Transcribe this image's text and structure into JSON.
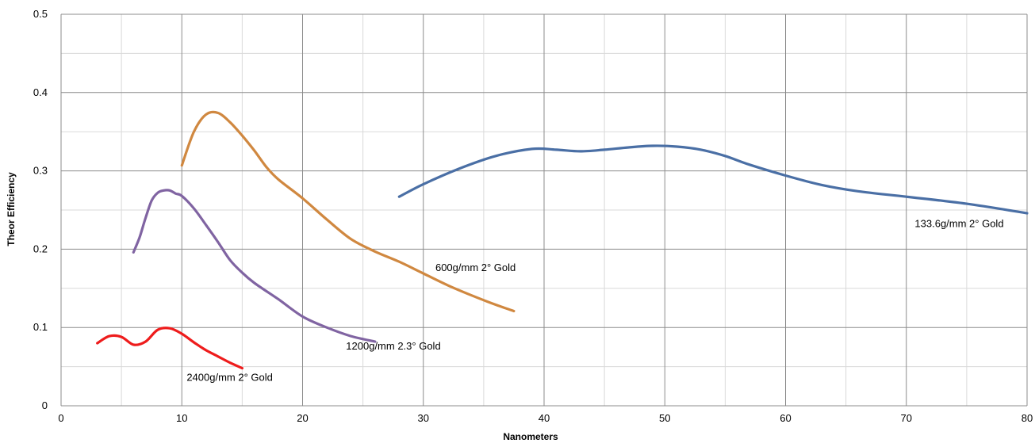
{
  "chart_data": {
    "type": "line",
    "title": "",
    "xlabel": "Nanometers",
    "ylabel": "Theor Efficiency",
    "xlim": [
      0,
      80
    ],
    "ylim": [
      0,
      0.5
    ],
    "x_ticks": [
      0,
      10,
      20,
      30,
      40,
      50,
      60,
      70,
      80
    ],
    "y_ticks": [
      0,
      0.1,
      0.2,
      0.3,
      0.4,
      0.5
    ],
    "x_tick_labels": [
      "0",
      "10",
      "20",
      "30",
      "40",
      "50",
      "60",
      "70",
      "80"
    ],
    "y_tick_labels": [
      "0",
      "0.1",
      "0.2",
      "0.3",
      "0.4",
      "0.5"
    ],
    "x_minor_step": 5,
    "y_minor_step": 0.05,
    "grid": true,
    "legend": "none",
    "series": [
      {
        "name": "133.6g/mm 2° Gold",
        "color": "#4a6fa5",
        "x": [
          28,
          30,
          33,
          36,
          39,
          41,
          43,
          45,
          47,
          49,
          51,
          53,
          55,
          57,
          60,
          63,
          66,
          70,
          75,
          80
        ],
        "y": [
          0.267,
          0.283,
          0.303,
          0.319,
          0.328,
          0.327,
          0.325,
          0.327,
          0.33,
          0.332,
          0.331,
          0.327,
          0.319,
          0.308,
          0.294,
          0.282,
          0.274,
          0.267,
          0.258,
          0.246
        ]
      },
      {
        "name": "600g/mm 2° Gold",
        "color": "#d08840",
        "x": [
          10,
          11,
          12,
          13,
          14,
          15,
          16,
          17,
          18,
          20,
          22,
          24,
          26,
          28,
          30,
          32,
          34,
          36,
          37.5
        ],
        "y": [
          0.307,
          0.35,
          0.372,
          0.374,
          0.362,
          0.345,
          0.326,
          0.305,
          0.289,
          0.265,
          0.238,
          0.213,
          0.197,
          0.184,
          0.169,
          0.154,
          0.141,
          0.129,
          0.121
        ]
      },
      {
        "name": "1200g/mm 2.3° Gold",
        "color": "#8064a2",
        "x": [
          6,
          6.5,
          7,
          7.5,
          8,
          8.5,
          9,
          9.5,
          10,
          11,
          12,
          13,
          14,
          15,
          16,
          18,
          20,
          22,
          24,
          26
        ],
        "y": [
          0.196,
          0.215,
          0.24,
          0.262,
          0.272,
          0.275,
          0.275,
          0.271,
          0.268,
          0.252,
          0.231,
          0.209,
          0.186,
          0.17,
          0.157,
          0.136,
          0.114,
          0.1,
          0.089,
          0.082
        ]
      },
      {
        "name": "2400g/mm 2° Gold",
        "color": "#ee1c1c",
        "x": [
          3,
          4,
          5,
          6,
          7,
          8,
          9,
          10,
          11,
          12,
          13,
          14,
          15
        ],
        "y": [
          0.08,
          0.089,
          0.088,
          0.078,
          0.082,
          0.097,
          0.099,
          0.092,
          0.081,
          0.071,
          0.063,
          0.055,
          0.048
        ]
      }
    ],
    "annotations": [
      {
        "text": "133.6g/mm 2° Gold",
        "x": 70.7,
        "y": 0.228
      },
      {
        "text": "600g/mm 2° Gold",
        "x": 31.0,
        "y": 0.172
      },
      {
        "text": "1200g/mm 2.3° Gold",
        "x": 23.6,
        "y": 0.072
      },
      {
        "text": "2400g/mm 2° Gold",
        "x": 10.4,
        "y": 0.032
      }
    ]
  }
}
